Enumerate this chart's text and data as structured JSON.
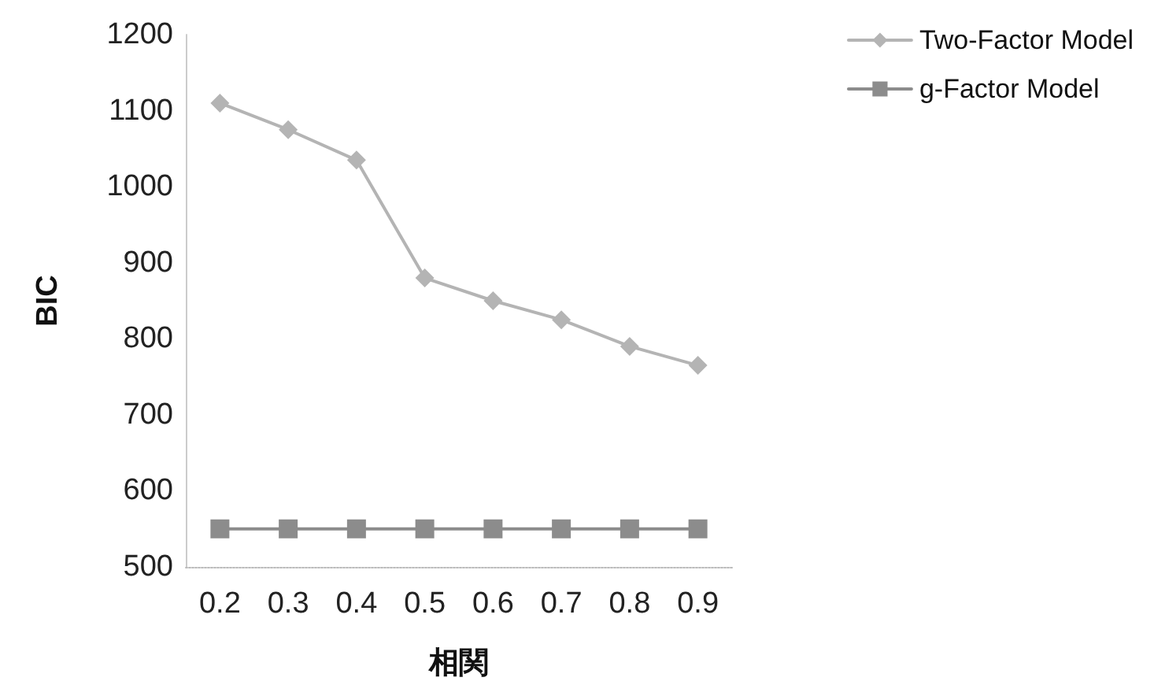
{
  "chart_data": {
    "type": "line",
    "xlabel": "相関",
    "ylabel": "BIC",
    "categories": [
      "0.2",
      "0.3",
      "0.4",
      "0.5",
      "0.6",
      "0.7",
      "0.8",
      "0.9"
    ],
    "series": [
      {
        "name": "Two-Factor Model",
        "color": "#b4b4b4",
        "marker": "diamond",
        "values": [
          1110,
          1075,
          1035,
          880,
          850,
          825,
          790,
          765
        ]
      },
      {
        "name": "g-Factor Model",
        "color": "#8c8c8c",
        "marker": "square",
        "values": [
          550,
          550,
          550,
          550,
          550,
          550,
          550,
          550
        ]
      }
    ],
    "ylim": [
      500,
      1200
    ],
    "yticks": [
      500,
      600,
      700,
      800,
      900,
      1000,
      1100,
      1200
    ],
    "grid": false,
    "legend": "top right"
  }
}
